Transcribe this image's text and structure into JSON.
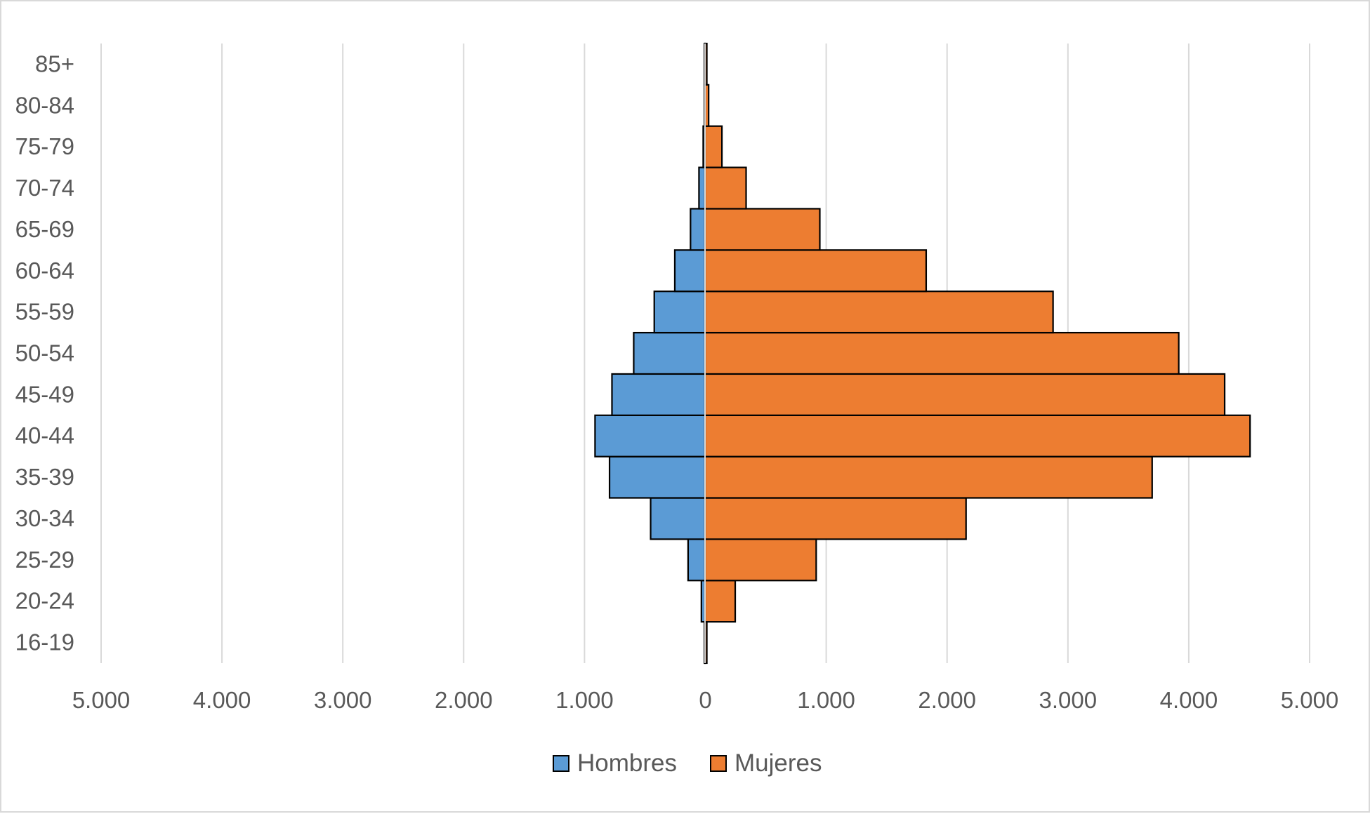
{
  "chart_data": {
    "type": "bar",
    "orientation": "horizontal",
    "layout": "population-pyramid",
    "categories": [
      "16-19",
      "20-24",
      "25-29",
      "30-34",
      "35-39",
      "40-44",
      "45-49",
      "50-54",
      "55-59",
      "60-64",
      "65-69",
      "70-74",
      "75-79",
      "80-84",
      "85+"
    ],
    "series": [
      {
        "name": "Hombres",
        "side": "left",
        "color": "#5b9bd5",
        "values": [
          5,
          30,
          140,
          450,
          790,
          910,
          770,
          590,
          420,
          250,
          120,
          50,
          15,
          5,
          5
        ]
      },
      {
        "name": "Mujeres",
        "side": "right",
        "color": "#ed7d31",
        "values": [
          15,
          250,
          920,
          2160,
          3700,
          4510,
          4300,
          3920,
          2880,
          1830,
          950,
          340,
          140,
          30,
          15
        ]
      }
    ],
    "xlim": [
      -5000,
      5000
    ],
    "x_ticks": [
      -5000,
      -4000,
      -3000,
      -2000,
      -1000,
      0,
      1000,
      2000,
      3000,
      4000,
      5000
    ],
    "x_tick_labels": [
      "5.000",
      "4.000",
      "3.000",
      "2.000",
      "1.000",
      "0",
      "1.000",
      "2.000",
      "3.000",
      "4.000",
      "5.000"
    ],
    "grid": "vertical",
    "legend_position": "bottom",
    "title": "",
    "xlabel": "",
    "ylabel": ""
  }
}
